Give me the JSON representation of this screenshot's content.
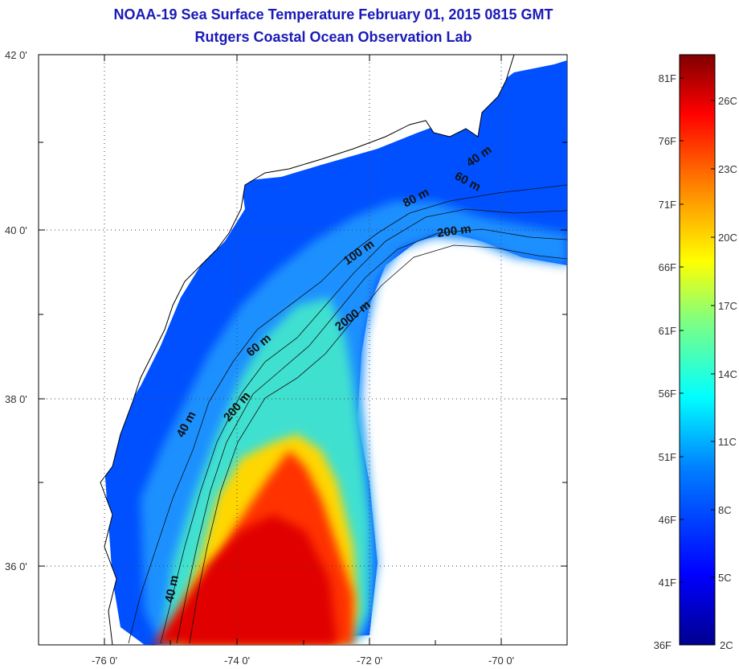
{
  "title": {
    "line1": "NOAA-19 Sea Surface Temperature February 01, 2015 0815 GMT",
    "line2": "Rutgers Coastal Ocean Observation Lab"
  },
  "map": {
    "lat_labels": [
      "42 0'",
      "40 0'",
      "38 0'",
      "36 0'"
    ],
    "lon_labels": [
      "-76 0'",
      "-74 0'",
      "-72 0'",
      "-70 0'"
    ],
    "isobath_labels": [
      "40 m",
      "60 m",
      "80 m",
      "200 m",
      "100 m",
      "2000 m",
      "60 m",
      "200 m",
      "40 m",
      "40 m"
    ]
  },
  "colorbar": {
    "f_labels": [
      "81F",
      "76F",
      "71F",
      "66F",
      "61F",
      "56F",
      "51F",
      "46F",
      "41F",
      "36F"
    ],
    "c_labels": [
      "26C",
      "23C",
      "20C",
      "17C",
      "14C",
      "11C",
      "8C",
      "5C",
      "2C"
    ],
    "colors": [
      "#00008f",
      "#0000ff",
      "#0080ff",
      "#00ffff",
      "#80ff80",
      "#ffff00",
      "#ff8000",
      "#ff0000",
      "#800000"
    ]
  }
}
